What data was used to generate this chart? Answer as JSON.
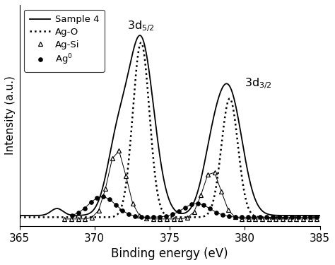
{
  "xlim": [
    365,
    385
  ],
  "xlabel": "Binding energy (eV)",
  "ylabel": "Intensity (a.u.)",
  "xticks": [
    365,
    370,
    375,
    380,
    385
  ],
  "legend_labels": [
    "Sample 4",
    "Ag$^{0}$",
    "Ag-Si",
    "Ag-O"
  ],
  "background_color": "#ffffff"
}
